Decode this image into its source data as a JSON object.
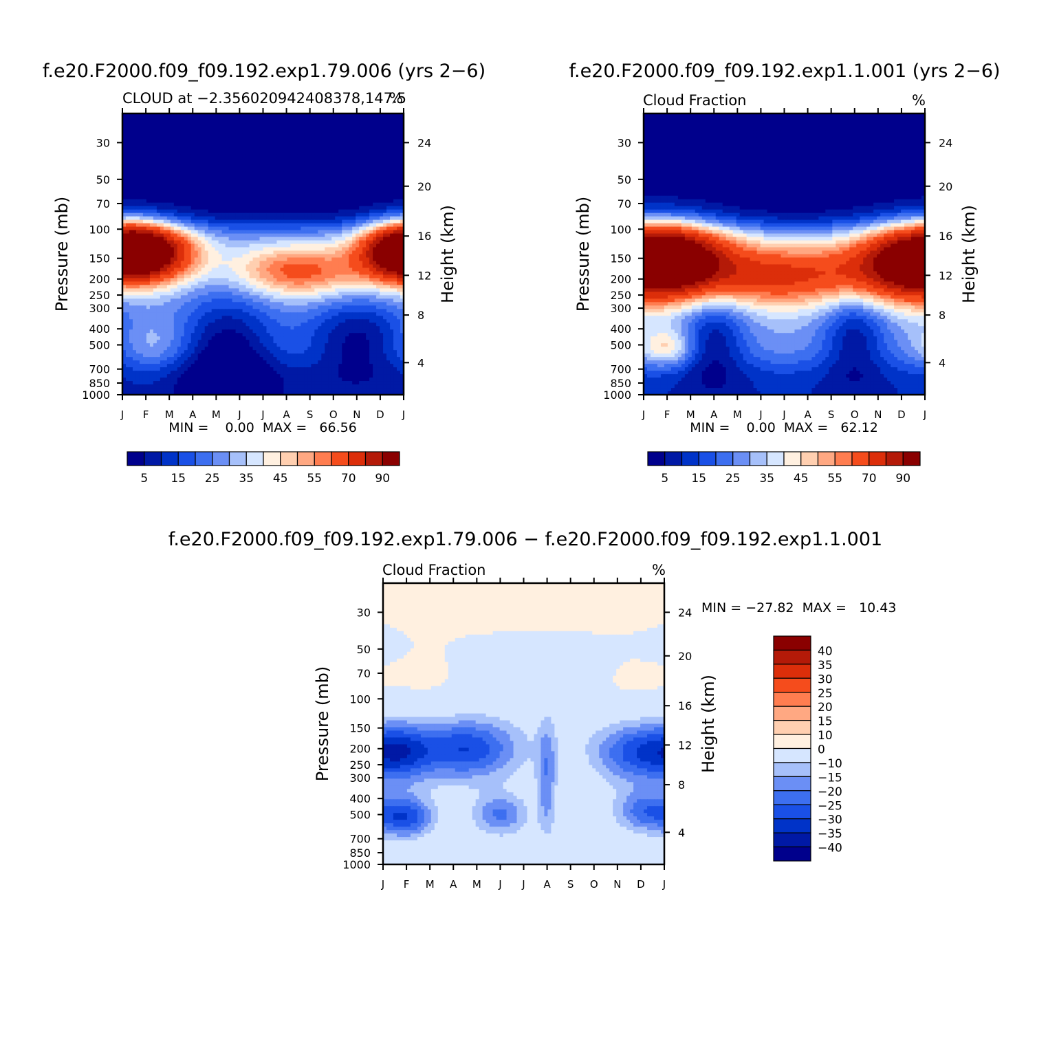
{
  "figure": {
    "bottom_title": "f.e20.F2000.f09_f09.192.exp1.79.006 − f.e20.F2000.f09_f09.192.exp1.1.001"
  },
  "colors": {
    "abs": [
      "#00008c",
      "#0019a5",
      "#0033c8",
      "#1a50e6",
      "#3d6ff0",
      "#6b8ff5",
      "#a6c0fa",
      "#d6e6ff",
      "#fff0e0",
      "#ffcfb0",
      "#ffa882",
      "#ff7d50",
      "#f54c1c",
      "#dc2e0a",
      "#b41a08",
      "#8a0000"
    ],
    "diff": [
      "#00008c",
      "#0019a5",
      "#0033c8",
      "#1a50e6",
      "#3d6ff0",
      "#6b8ff5",
      "#a6c0fa",
      "#d6e6ff",
      "#fff0e0",
      "#ffcfb0",
      "#ffa882",
      "#ff7d50",
      "#f54c1c",
      "#dc2e0a",
      "#b41a08",
      "#8a0000"
    ]
  },
  "chart_data": [
    {
      "type": "heatmap",
      "panel": "left",
      "title": "f.e20.F2000.f09_f09.192.exp1.79.006 (yrs 2−6)",
      "subtitle_left": "CLOUD at −2.356020942408378,147.5",
      "subtitle_right": "%",
      "xlabel": "",
      "ylabel": "Pressure (mb)",
      "ylabel_right": "Height (km)",
      "x_ticks": [
        "J",
        "F",
        "M",
        "A",
        "M",
        "J",
        "J",
        "A",
        "S",
        "O",
        "N",
        "D",
        "J"
      ],
      "y_ticks": [
        30,
        50,
        70,
        100,
        150,
        200,
        250,
        300,
        400,
        500,
        700,
        850,
        1000
      ],
      "y_right_ticks": [
        4,
        8,
        12,
        16,
        20,
        24
      ],
      "ylim": [
        20,
        1000
      ],
      "stats": "MIN =    0.00  MAX =   66.56",
      "colorbar_labels": [
        "5",
        "15",
        "25",
        "35",
        "45",
        "55",
        "70",
        "90"
      ],
      "months": 13,
      "features": [
        {
          "kind": "cap",
          "levels": [
            [
              90,
              0.35
            ],
            [
              150,
              -0.2
            ],
            [
              250,
              -0.35
            ]
          ]
        },
        {
          "kind": "blob",
          "month": 1.0,
          "p": 140,
          "mw": 1.5,
          "lw": 0.28,
          "amp": 62
        },
        {
          "kind": "blob",
          "month": 12.0,
          "p": 135,
          "mw": 1.3,
          "lw": 0.28,
          "amp": 60
        },
        {
          "kind": "blob",
          "month": 7.5,
          "p": 180,
          "mw": 2.0,
          "lw": 0.25,
          "amp": 34
        },
        {
          "kind": "blob",
          "month": 4.5,
          "p": 550,
          "mw": 1.5,
          "lw": 0.6,
          "amp": -28
        },
        {
          "kind": "blob",
          "month": 10.0,
          "p": 450,
          "mw": 1.6,
          "lw": 0.4,
          "amp": -25
        },
        {
          "kind": "blob",
          "month": 1.2,
          "p": 500,
          "mw": 1.0,
          "lw": 0.25,
          "amp": 8
        }
      ]
    },
    {
      "type": "heatmap",
      "panel": "right",
      "title": "f.e20.F2000.f09_f09.192.exp1.1.001 (yrs 2−6)",
      "subtitle_left": "Cloud Fraction",
      "subtitle_right": "%",
      "xlabel": "",
      "ylabel": "Pressure (mb)",
      "ylabel_right": "Height (km)",
      "x_ticks": [
        "J",
        "F",
        "M",
        "A",
        "M",
        "J",
        "J",
        "A",
        "S",
        "O",
        "N",
        "D",
        "J"
      ],
      "y_ticks": [
        30,
        50,
        70,
        100,
        150,
        200,
        250,
        300,
        400,
        500,
        700,
        850,
        1000
      ],
      "y_right_ticks": [
        4,
        8,
        12,
        16,
        20,
        24
      ],
      "ylim": [
        20,
        1000
      ],
      "stats": "MIN =    0.00  MAX =   62.12",
      "colorbar_labels": [
        "5",
        "15",
        "25",
        "35",
        "45",
        "55",
        "70",
        "90"
      ],
      "months": 13,
      "features": [
        {
          "kind": "cap",
          "levels": [
            [
              90,
              0.35
            ],
            [
              150,
              -0.2
            ],
            [
              250,
              -0.35
            ]
          ]
        },
        {
          "kind": "blob",
          "month": 1.2,
          "p": 150,
          "mw": 1.8,
          "lw": 0.35,
          "amp": 62
        },
        {
          "kind": "blob",
          "month": 11.5,
          "p": 160,
          "mw": 1.8,
          "lw": 0.35,
          "amp": 56
        },
        {
          "kind": "blob",
          "month": 6.0,
          "p": 190,
          "mw": 3.0,
          "lw": 0.3,
          "amp": 42
        },
        {
          "kind": "blob",
          "month": 3.0,
          "p": 450,
          "mw": 1.0,
          "lw": 0.45,
          "amp": -22
        },
        {
          "kind": "blob",
          "month": 9.0,
          "p": 430,
          "mw": 1.0,
          "lw": 0.45,
          "amp": -22
        },
        {
          "kind": "blob",
          "month": 1.0,
          "p": 520,
          "mw": 0.8,
          "lw": 0.18,
          "amp": 20
        }
      ]
    },
    {
      "type": "heatmap",
      "panel": "bottom",
      "title": "",
      "subtitle_left": "Cloud Fraction",
      "subtitle_right": "%",
      "xlabel": "",
      "ylabel": "Pressure (mb)",
      "ylabel_right": "Height (km)",
      "x_ticks": [
        "J",
        "F",
        "M",
        "A",
        "M",
        "J",
        "J",
        "A",
        "S",
        "O",
        "N",
        "D",
        "J"
      ],
      "y_ticks": [
        30,
        50,
        70,
        100,
        150,
        200,
        250,
        300,
        400,
        500,
        700,
        850,
        1000
      ],
      "y_right_ticks": [
        4,
        8,
        12,
        16,
        20,
        24
      ],
      "ylim": [
        20,
        1000
      ],
      "stats": "MIN = −27.82  MAX =   10.43",
      "colorbar_labels": [
        "40",
        "35",
        "30",
        "25",
        "20",
        "15",
        "10",
        "0",
        "−10",
        "−15",
        "−20",
        "−25",
        "−30",
        "−35",
        "−40"
      ],
      "months": 13,
      "diff": true,
      "features": [
        {
          "kind": "blob",
          "month": 3.5,
          "p": 200,
          "mw": 1.6,
          "lw": 0.3,
          "amp": -26
        },
        {
          "kind": "blob",
          "month": 11.0,
          "p": 210,
          "mw": 1.4,
          "lw": 0.3,
          "amp": -25
        },
        {
          "kind": "blob",
          "month": 0.8,
          "p": 210,
          "mw": 0.9,
          "lw": 0.3,
          "amp": -16
        },
        {
          "kind": "blob",
          "month": 7.0,
          "p": 300,
          "mw": 0.3,
          "lw": 0.6,
          "amp": -15
        },
        {
          "kind": "blob",
          "month": 1.0,
          "p": 520,
          "mw": 0.8,
          "lw": 0.2,
          "amp": -24
        },
        {
          "kind": "blob",
          "month": 5.0,
          "p": 500,
          "mw": 0.8,
          "lw": 0.2,
          "amp": -17
        },
        {
          "kind": "blob",
          "month": 11.2,
          "p": 480,
          "mw": 0.9,
          "lw": 0.2,
          "amp": -19
        },
        {
          "kind": "blob",
          "month": 8.3,
          "p": 350,
          "mw": 0.6,
          "lw": 0.25,
          "amp": 3
        },
        {
          "kind": "blob",
          "month": 2.6,
          "p": 900,
          "mw": 0.9,
          "lw": 0.2,
          "amp": 3
        },
        {
          "kind": "blob",
          "month": 8.8,
          "p": 900,
          "mw": 1.2,
          "lw": 0.25,
          "amp": 3
        },
        {
          "kind": "blob",
          "month": 6.0,
          "p": 25,
          "mw": 8,
          "lw": 0.5,
          "amp": 6
        },
        {
          "kind": "blob",
          "month": 10.5,
          "p": 85,
          "mw": 1.5,
          "lw": 0.4,
          "amp": 4
        },
        {
          "kind": "blob",
          "month": 2.0,
          "p": 80,
          "mw": 1.5,
          "lw": 0.4,
          "amp": 4
        }
      ]
    }
  ]
}
